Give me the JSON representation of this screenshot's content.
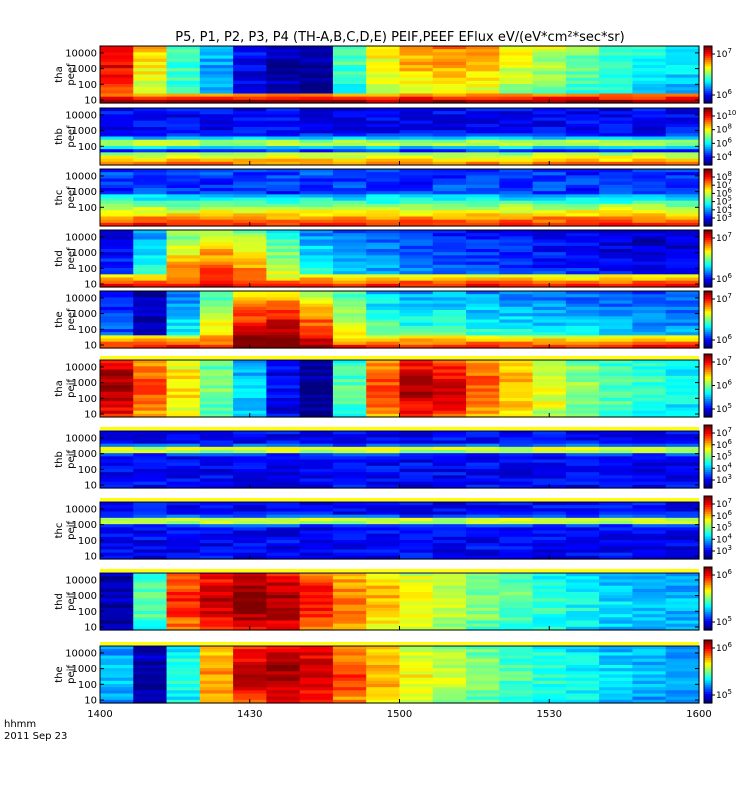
{
  "title": "P5, P1, P2, P3, P4 (TH-A,B,C,D,E) PEIF,PEEF EFlux eV/(eV*cm²*sec*sr)",
  "footer": {
    "axis_unit": "hhmm",
    "date": "2011 Sep 23"
  },
  "chart_data": [
    {
      "type": "heatmap",
      "ylabel": "tha peef",
      "x_ticks": [
        "1400",
        "1430",
        "1500",
        "1530",
        "1600"
      ],
      "y_ticks": [
        "10",
        "100",
        "1000",
        "10000"
      ],
      "y_scale": "log",
      "colorbar_ticks": [
        "10^7",
        "10^6"
      ],
      "profile": [
        0.9,
        0.65,
        0.45,
        0.3,
        0.12,
        0.05,
        0.02,
        0.45,
        0.62,
        0.7,
        0.72,
        0.68,
        0.6,
        0.55,
        0.48,
        0.42,
        0.38,
        0.35
      ],
      "pattern": "electron_a"
    },
    {
      "type": "heatmap",
      "ylabel": "thb peef",
      "x_ticks": [
        "1400",
        "1430",
        "1500",
        "1530",
        "1600"
      ],
      "y_ticks": [
        "100",
        "1000",
        "10000"
      ],
      "y_scale": "log",
      "colorbar_ticks": [
        "10^10",
        "10^8",
        "10^6",
        "10^4"
      ],
      "profile": [
        0.1,
        0.1,
        0.1,
        0.1,
        0.1,
        0.1,
        0.1,
        0.1,
        0.1,
        0.1,
        0.1,
        0.1,
        0.1,
        0.1,
        0.1,
        0.1,
        0.1,
        0.1
      ],
      "pattern": "electron_b"
    },
    {
      "type": "heatmap",
      "ylabel": "thc peef",
      "x_ticks": [
        "1400",
        "1430",
        "1500",
        "1530",
        "1600"
      ],
      "y_ticks": [
        "100",
        "1000",
        "10000"
      ],
      "y_scale": "log",
      "colorbar_ticks": [
        "10^8",
        "10^7",
        "10^6",
        "10^5",
        "10^4",
        "10^3"
      ],
      "profile": [
        0.2,
        0.2,
        0.2,
        0.2,
        0.2,
        0.2,
        0.2,
        0.2,
        0.2,
        0.2,
        0.2,
        0.2,
        0.2,
        0.2,
        0.2,
        0.2,
        0.2,
        0.2
      ],
      "pattern": "electron_c"
    },
    {
      "type": "heatmap",
      "ylabel": "thd peef",
      "x_ticks": [
        "1400",
        "1430",
        "1500",
        "1530",
        "1600"
      ],
      "y_ticks": [
        "10",
        "100",
        "1000",
        "10000"
      ],
      "y_scale": "log",
      "colorbar_ticks": [
        "10^7",
        "10^6"
      ],
      "profile": [
        0.15,
        0.4,
        0.7,
        0.78,
        0.7,
        0.55,
        0.38,
        0.3,
        0.28,
        0.25,
        0.22,
        0.2,
        0.18,
        0.16,
        0.14,
        0.12,
        0.1,
        0.1
      ],
      "pattern": "electron_d"
    },
    {
      "type": "heatmap",
      "ylabel": "the peef",
      "x_ticks": [
        "1400",
        "1430",
        "1500",
        "1530",
        "1600"
      ],
      "y_ticks": [
        "10",
        "100",
        "1000",
        "10000"
      ],
      "y_scale": "log",
      "colorbar_ticks": [
        "10^7",
        "10^6"
      ],
      "profile": [
        0.2,
        0.05,
        0.35,
        0.62,
        0.88,
        0.92,
        0.8,
        0.6,
        0.45,
        0.4,
        0.42,
        0.38,
        0.36,
        0.34,
        0.32,
        0.3,
        0.28,
        0.27
      ],
      "pattern": "electron_e"
    },
    {
      "type": "heatmap",
      "ylabel": "tha peif",
      "x_ticks": [
        "1400",
        "1430",
        "1500",
        "1530",
        "1600"
      ],
      "y_ticks": [
        "10",
        "100",
        "1000",
        "10000"
      ],
      "y_scale": "log",
      "colorbar_ticks": [
        "10^7",
        "10^6",
        "10^5"
      ],
      "profile": [
        0.95,
        0.78,
        0.65,
        0.48,
        0.32,
        0.12,
        0.02,
        0.45,
        0.78,
        0.92,
        0.88,
        0.78,
        0.68,
        0.6,
        0.52,
        0.46,
        0.42,
        0.38
      ],
      "pattern": "ion"
    },
    {
      "type": "heatmap",
      "ylabel": "thb peif",
      "x_ticks": [
        "1400",
        "1430",
        "1500",
        "1530",
        "1600"
      ],
      "y_ticks": [
        "10",
        "100",
        "1000",
        "10000"
      ],
      "y_scale": "log",
      "colorbar_ticks": [
        "10^7",
        "10^6",
        "10^5",
        "10^4",
        "10^3"
      ],
      "profile": [
        0.12,
        0.12,
        0.12,
        0.12,
        0.12,
        0.12,
        0.12,
        0.12,
        0.12,
        0.12,
        0.12,
        0.12,
        0.12,
        0.12,
        0.12,
        0.12,
        0.12,
        0.12
      ],
      "pattern": "ion_band"
    },
    {
      "type": "heatmap",
      "ylabel": "thc peif",
      "x_ticks": [
        "1400",
        "1430",
        "1500",
        "1530",
        "1600"
      ],
      "y_ticks": [
        "10",
        "100",
        "1000",
        "10000"
      ],
      "y_scale": "log",
      "colorbar_ticks": [
        "10^7",
        "10^6",
        "10^5",
        "10^4",
        "10^3"
      ],
      "profile": [
        0.1,
        0.1,
        0.1,
        0.1,
        0.1,
        0.1,
        0.1,
        0.1,
        0.1,
        0.1,
        0.1,
        0.1,
        0.1,
        0.1,
        0.1,
        0.1,
        0.1,
        0.1
      ],
      "pattern": "ion_band"
    },
    {
      "type": "heatmap",
      "ylabel": "thd peif",
      "x_ticks": [
        "1400",
        "1430",
        "1500",
        "1530",
        "1600"
      ],
      "y_ticks": [
        "10",
        "100",
        "1000",
        "10000"
      ],
      "y_scale": "log",
      "colorbar_ticks": [
        "10^6",
        "10^5"
      ],
      "profile": [
        0.05,
        0.45,
        0.82,
        0.92,
        0.97,
        0.95,
        0.85,
        0.75,
        0.68,
        0.62,
        0.56,
        0.5,
        0.46,
        0.42,
        0.38,
        0.34,
        0.32,
        0.3
      ],
      "pattern": "ion"
    },
    {
      "type": "heatmap",
      "ylabel": "the peif",
      "x_ticks": [
        "1400",
        "1430",
        "1500",
        "1530",
        "1600"
      ],
      "y_ticks": [
        "10",
        "100",
        "1000",
        "10000"
      ],
      "y_scale": "log",
      "colorbar_ticks": [
        "10^6",
        "10^5"
      ],
      "profile": [
        0.3,
        0.05,
        0.4,
        0.72,
        0.9,
        0.96,
        0.92,
        0.8,
        0.7,
        0.62,
        0.55,
        0.5,
        0.45,
        0.42,
        0.38,
        0.34,
        0.31,
        0.3
      ],
      "pattern": "ion"
    }
  ]
}
